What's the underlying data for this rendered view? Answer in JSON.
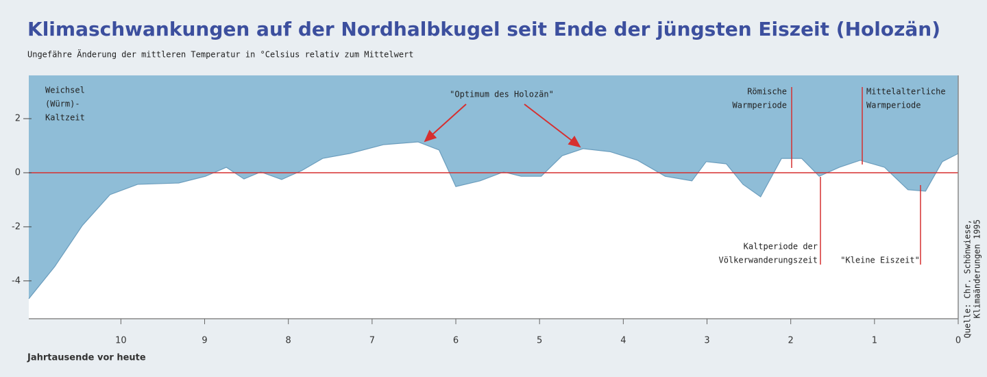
{
  "chart_data": {
    "type": "area",
    "title": "Klimaschwankungen auf der Nordhalbkugel seit Ende der jüngsten Eiszeit (Holozän)",
    "subtitle": "Ungefähre Änderung der mittleren Temperatur in °Celsius relativ zum Mittelwert",
    "x_label": "Jahrtausende vor heute",
    "source": [
      "Quelle: Chr. Schönwiese,",
      "Klimaänderungen 1995"
    ],
    "x": [
      11.1,
      10.79,
      10.46,
      10.13,
      9.8,
      9.31,
      8.99,
      8.74,
      8.53,
      8.33,
      8.08,
      7.84,
      7.59,
      7.27,
      6.86,
      6.45,
      6.2,
      6.0,
      5.71,
      5.43,
      5.22,
      4.98,
      4.73,
      4.48,
      4.16,
      3.83,
      3.5,
      3.18,
      3.01,
      2.77,
      2.57,
      2.36,
      2.11,
      1.87,
      1.66,
      1.42,
      1.17,
      0.88,
      0.6,
      0.39,
      0.19,
      0
    ],
    "values": [
      -4.66,
      -3.47,
      -1.95,
      -0.81,
      -0.43,
      -0.38,
      -0.13,
      0.2,
      -0.23,
      0.03,
      -0.25,
      0.08,
      0.53,
      0.71,
      1.04,
      1.14,
      0.84,
      -0.51,
      -0.3,
      0.03,
      -0.13,
      -0.13,
      0.63,
      0.89,
      0.78,
      0.46,
      -0.13,
      -0.3,
      0.41,
      0.33,
      -0.43,
      -0.89,
      0.53,
      0.53,
      -0.13,
      0.2,
      0.46,
      0.2,
      -0.63,
      -0.68,
      0.41,
      0.71
    ],
    "color": "#8fbdd7",
    "xlim": [
      11.1,
      0
    ],
    "xticks": [
      10,
      9,
      8,
      7,
      6,
      5,
      4,
      3,
      2,
      1,
      0
    ],
    "ylim": [
      -5.4,
      3.6
    ],
    "yticks": [
      -4,
      -2,
      0,
      2
    ],
    "reference_line": 0,
    "reference_color": "#d62f2f",
    "annotations": [
      {
        "text": [
          "Weichsel",
          "(Würm)-",
          "Kaltzeit"
        ]
      },
      {
        "text": [
          "\"Optimum des Holozän\""
        ]
      },
      {
        "text": [
          "Römische",
          "Warmperiode"
        ]
      },
      {
        "text": [
          "Mittelalterliche",
          "Warmperiode"
        ]
      },
      {
        "text": [
          "Kaltperiode der",
          "Völkerwanderungszeit"
        ]
      },
      {
        "text": [
          "\"Kleine Eiszeit\""
        ]
      }
    ]
  }
}
